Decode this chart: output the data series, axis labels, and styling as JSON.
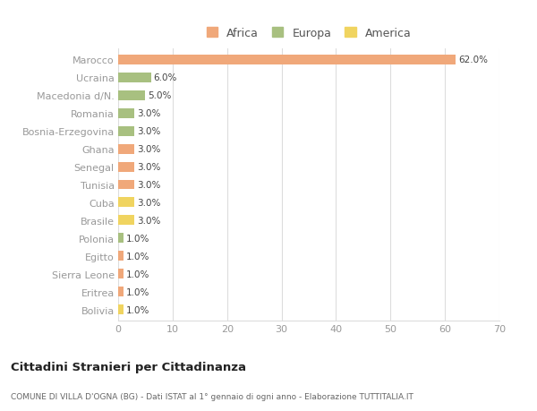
{
  "countries": [
    "Marocco",
    "Ucraina",
    "Macedonia d/N.",
    "Romania",
    "Bosnia-Erzegovina",
    "Ghana",
    "Senegal",
    "Tunisia",
    "Cuba",
    "Brasile",
    "Polonia",
    "Egitto",
    "Sierra Leone",
    "Eritrea",
    "Bolivia"
  ],
  "values": [
    62.0,
    6.0,
    5.0,
    3.0,
    3.0,
    3.0,
    3.0,
    3.0,
    3.0,
    3.0,
    1.0,
    1.0,
    1.0,
    1.0,
    1.0
  ],
  "continents": [
    "Africa",
    "Europa",
    "Europa",
    "Europa",
    "Europa",
    "Africa",
    "Africa",
    "Africa",
    "America",
    "America",
    "Europa",
    "Africa",
    "Africa",
    "Africa",
    "America"
  ],
  "colors": {
    "Africa": "#F0A87A",
    "Europa": "#A8C080",
    "America": "#F0D460"
  },
  "legend_order": [
    "Africa",
    "Europa",
    "America"
  ],
  "legend_colors": [
    "#F0A87A",
    "#A8C080",
    "#F0D460"
  ],
  "xlim": [
    0,
    70
  ],
  "xticks": [
    0,
    10,
    20,
    30,
    40,
    50,
    60,
    70
  ],
  "title": "Cittadini Stranieri per Cittadinanza",
  "subtitle": "COMUNE DI VILLA D'OGNA (BG) - Dati ISTAT al 1° gennaio di ogni anno - Elaborazione TUTTITALIA.IT",
  "background_color": "#FFFFFF",
  "grid_color": "#DDDDDD",
  "bar_height": 0.55
}
